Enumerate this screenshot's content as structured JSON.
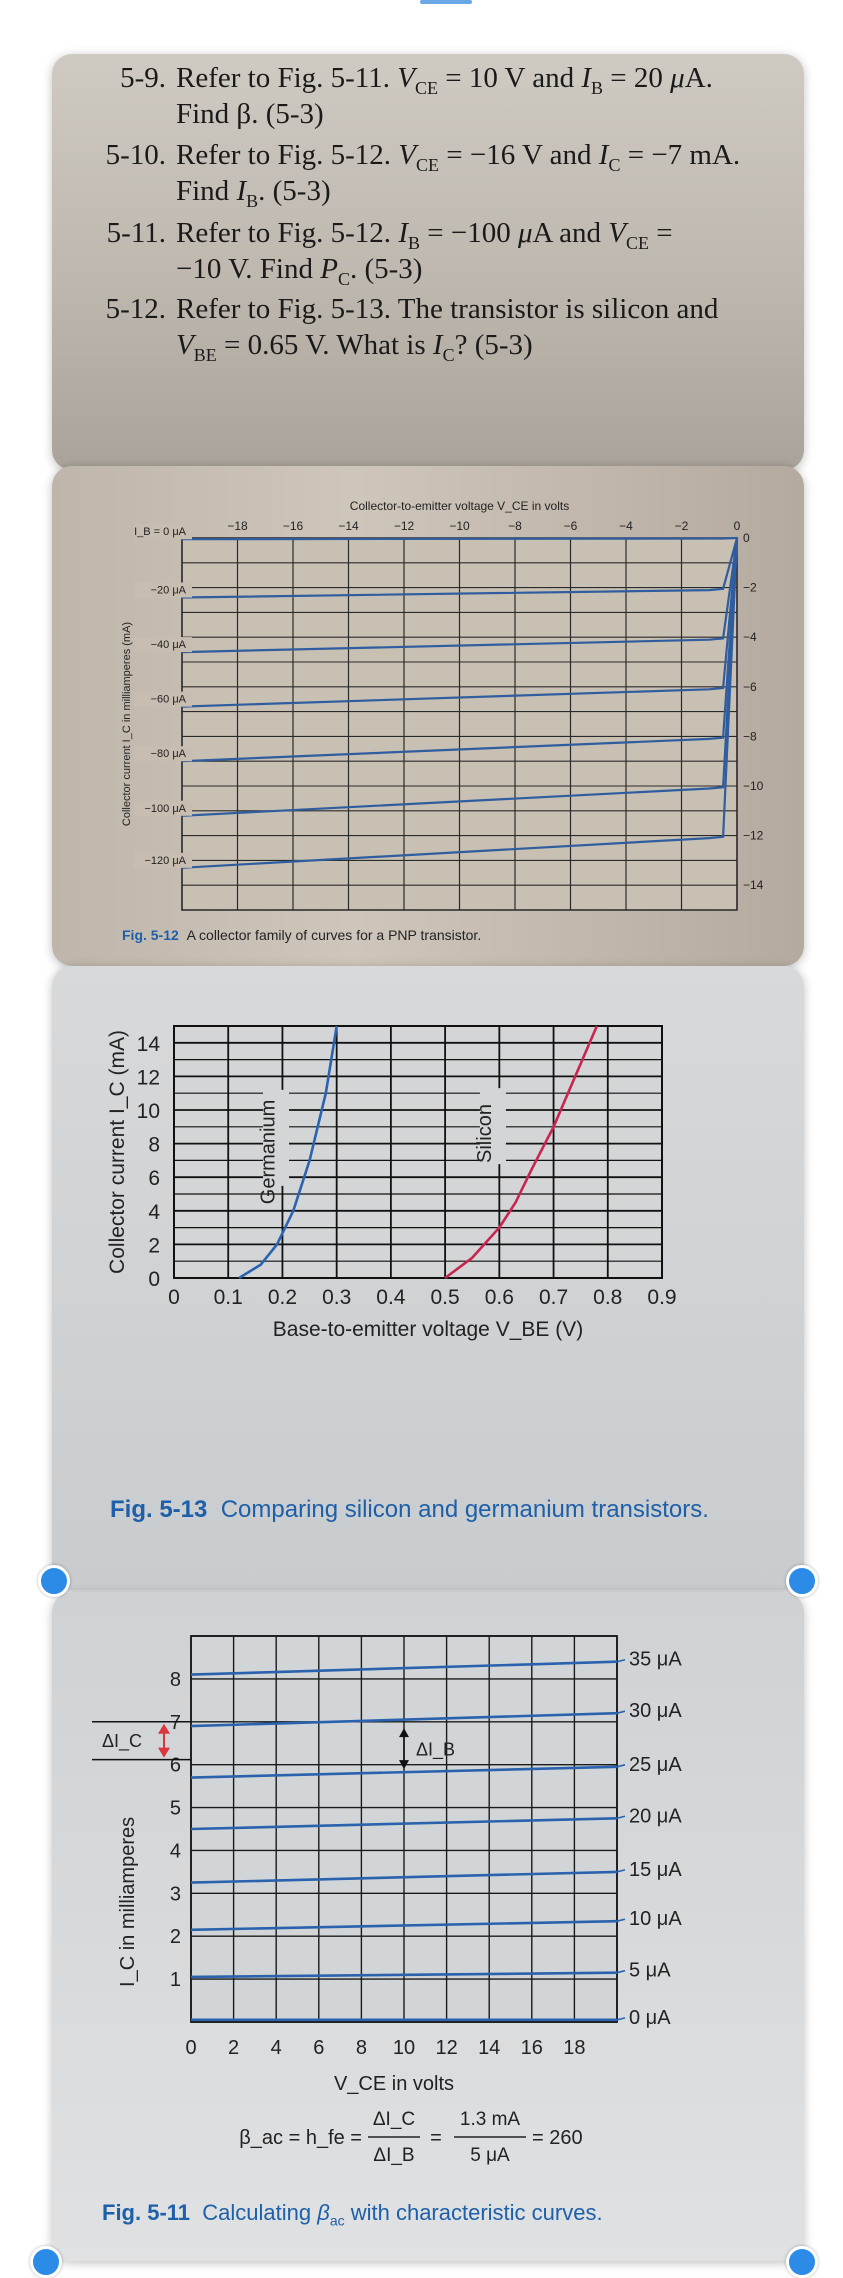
{
  "problems": [
    {
      "number": "5-9.",
      "line1": "Refer to Fig. 5-11. V_CE = 10 V and I_B = 20 μA.",
      "line2": "Find β. (5-3)"
    },
    {
      "number": "5-10.",
      "line1": "Refer to Fig. 5-12. V_CE = −16 V and I_C = −7 mA.",
      "line2": "Find I_B. (5-3)"
    },
    {
      "number": "5-11.",
      "line1": "Refer to Fig. 5-12. I_B = −100 μA and V_CE =",
      "line2": "−10 V. Find P_C. (5-3)"
    },
    {
      "number": "5-12.",
      "line1": "Refer to Fig. 5-13. The transistor is silicon and",
      "line2": "V_BE = 0.65 V. What is I_C? (5-3)"
    }
  ],
  "fig512": {
    "caption_label": "Fig. 5-12",
    "caption_text": "A collector family of curves for a PNP transistor.",
    "xlabel": "Collector-to-emitter voltage V_CE in volts",
    "ylabel": "Collector current I_C in milliamperes (mA)",
    "x_ticks": [
      "−18",
      "−16",
      "−14",
      "−12",
      "−10",
      "−8",
      "−6",
      "−4",
      "−2",
      "0"
    ],
    "y_ticks": [
      "0",
      "−2",
      "−4",
      "−6",
      "−8",
      "−10",
      "−12",
      "−14"
    ],
    "curve_labels": [
      "I_B = 0 μA",
      "−20 μA",
      "−40 μA",
      "−60 μA",
      "−80 μA",
      "−100 μA",
      "−120 μA"
    ]
  },
  "fig513": {
    "caption_label": "Fig. 5-13",
    "caption_text": "Comparing silicon and germanium transistors.",
    "xlabel": "Base-to-emitter voltage V_BE (V)",
    "ylabel": "Collector current I_C (mA)",
    "x_ticks": [
      "0",
      "0.1",
      "0.2",
      "0.3",
      "0.4",
      "0.5",
      "0.6",
      "0.7",
      "0.8",
      "0.9"
    ],
    "y_ticks": [
      "0",
      "2",
      "4",
      "6",
      "8",
      "10",
      "12",
      "14"
    ],
    "germanium_label": "Germanium",
    "silicon_label": "Silicon"
  },
  "fig511": {
    "caption_label": "Fig. 5-11",
    "caption_text": "Calculating β_ac with characteristic curves.",
    "xlabel": "V_CE in volts",
    "ylabel": "I_C in milliamperes",
    "x_ticks": [
      "0",
      "2",
      "4",
      "6",
      "8",
      "10",
      "12",
      "14",
      "16",
      "18"
    ],
    "y_ticks": [
      "1",
      "2",
      "3",
      "4",
      "5",
      "6",
      "7",
      "8"
    ],
    "curve_labels": [
      "35 μA",
      "30 μA",
      "25 μA",
      "20 μA",
      "15 μA",
      "10 μA",
      "5 μA",
      "0 μA"
    ],
    "delta_ic": "ΔI_C",
    "delta_ib": "ΔI_B",
    "formula_lhs": "β_ac = h_fe =",
    "formula_num1": "ΔI_C",
    "formula_den1": "ΔI_B",
    "formula_num2": "1.3 mA",
    "formula_den2": "5 μA",
    "formula_result": "= 260"
  },
  "chart_data": [
    {
      "type": "line",
      "title": "",
      "xlabel": "Collector-to-emitter voltage V_CE in volts",
      "ylabel": "Collector current I_C in milliamperes (mA)",
      "xlim": [
        -20,
        0
      ],
      "ylim": [
        -15,
        0
      ],
      "series": [
        {
          "name": "I_B = 0 μA",
          "x": [
            -20,
            -0.5,
            0
          ],
          "y": [
            -0.05,
            -0.02,
            0
          ]
        },
        {
          "name": "−20 μA",
          "x": [
            -20,
            -1,
            -0.5,
            0
          ],
          "y": [
            -2.4,
            -2.1,
            -2.05,
            0
          ]
        },
        {
          "name": "−40 μA",
          "x": [
            -20,
            -1,
            -0.5,
            0
          ],
          "y": [
            -4.6,
            -4.1,
            -4.05,
            0
          ]
        },
        {
          "name": "−60 μA",
          "x": [
            -20,
            -1,
            -0.5,
            0
          ],
          "y": [
            -6.8,
            -6.1,
            -6.05,
            0
          ]
        },
        {
          "name": "−80 μA",
          "x": [
            -20,
            -1,
            -0.5,
            0
          ],
          "y": [
            -9.0,
            -8.1,
            -8.05,
            0
          ]
        },
        {
          "name": "−100 μA",
          "x": [
            -20,
            -1,
            -0.5,
            0
          ],
          "y": [
            -11.2,
            -10.1,
            -10.05,
            0
          ]
        },
        {
          "name": "−120 μA",
          "x": [
            -20,
            -1,
            -0.5,
            0
          ],
          "y": [
            -13.3,
            -12.1,
            -12.05,
            0
          ]
        }
      ]
    },
    {
      "type": "line",
      "title": "",
      "xlabel": "Base-to-emitter voltage V_BE (V)",
      "ylabel": "Collector current I_C (mA)",
      "xlim": [
        0,
        0.9
      ],
      "ylim": [
        0,
        15
      ],
      "series": [
        {
          "name": "Germanium",
          "x": [
            0.12,
            0.16,
            0.19,
            0.22,
            0.25,
            0.28,
            0.3
          ],
          "y": [
            0,
            0.8,
            2,
            4,
            7,
            11,
            15
          ]
        },
        {
          "name": "Silicon",
          "x": [
            0.5,
            0.55,
            0.6,
            0.63,
            0.66,
            0.7,
            0.74,
            0.78
          ],
          "y": [
            0,
            1.2,
            3,
            4.5,
            6.5,
            9,
            12,
            15
          ]
        }
      ]
    },
    {
      "type": "line",
      "title": "",
      "xlabel": "V_CE in volts",
      "ylabel": "I_C in milliamperes",
      "xlim": [
        0,
        20
      ],
      "ylim": [
        0,
        9
      ],
      "series": [
        {
          "name": "35 μA",
          "x": [
            0,
            20
          ],
          "y": [
            8.1,
            8.4
          ]
        },
        {
          "name": "30 μA",
          "x": [
            0,
            20
          ],
          "y": [
            6.9,
            7.2
          ]
        },
        {
          "name": "25 μA",
          "x": [
            0,
            20
          ],
          "y": [
            5.7,
            5.95
          ]
        },
        {
          "name": "20 μA",
          "x": [
            0,
            20
          ],
          "y": [
            4.5,
            4.75
          ]
        },
        {
          "name": "15 μA",
          "x": [
            0,
            20
          ],
          "y": [
            3.25,
            3.5
          ]
        },
        {
          "name": "10 μA",
          "x": [
            0,
            20
          ],
          "y": [
            2.15,
            2.35
          ]
        },
        {
          "name": "5 μA",
          "x": [
            0,
            20
          ],
          "y": [
            1.05,
            1.15
          ]
        },
        {
          "name": "0 μA",
          "x": [
            0,
            20
          ],
          "y": [
            0.05,
            0.05
          ]
        }
      ]
    }
  ]
}
